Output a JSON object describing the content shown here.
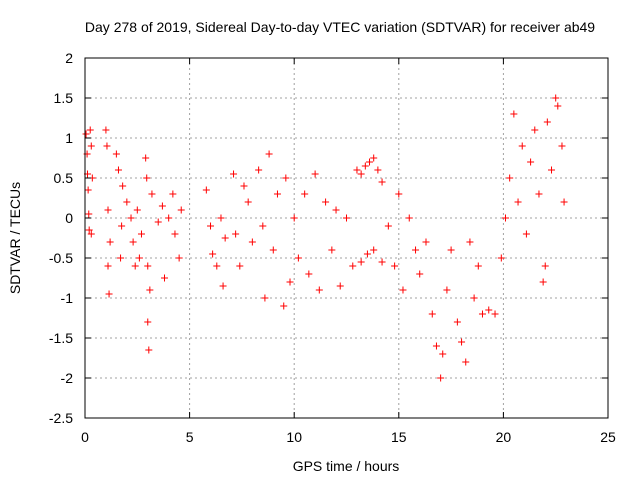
{
  "chart_data": {
    "type": "scatter",
    "title": "Day 278 of 2019, Sidereal Day-to-day VTEC variation (SDTVAR) for receiver ab49",
    "xlabel": "GPS time / hours",
    "ylabel": "SDTVAR / TECUs",
    "xlim": [
      0,
      25
    ],
    "ylim": [
      -2.5,
      2
    ],
    "xticks": [
      0,
      5,
      10,
      15,
      20,
      25
    ],
    "yticks": [
      -2.5,
      -2,
      -1.5,
      -1,
      -0.5,
      0,
      0.5,
      1,
      1.5,
      2
    ],
    "grid": true,
    "marker": "+",
    "series": [
      {
        "name": "SDTVAR",
        "color": "#ff0000",
        "points": [
          [
            0.05,
            1.05
          ],
          [
            0.1,
            0.8
          ],
          [
            0.12,
            0.55
          ],
          [
            0.15,
            0.35
          ],
          [
            0.18,
            0.05
          ],
          [
            0.2,
            -0.15
          ],
          [
            0.25,
            1.1
          ],
          [
            0.3,
            0.9
          ],
          [
            0.3,
            -0.2
          ],
          [
            0.35,
            0.5
          ],
          [
            1.0,
            1.1
          ],
          [
            1.05,
            0.9
          ],
          [
            1.1,
            0.1
          ],
          [
            1.1,
            -0.6
          ],
          [
            1.15,
            -0.95
          ],
          [
            1.2,
            -0.3
          ],
          [
            1.5,
            0.8
          ],
          [
            1.6,
            0.6
          ],
          [
            1.7,
            -0.5
          ],
          [
            1.75,
            -0.1
          ],
          [
            1.8,
            0.4
          ],
          [
            2.0,
            0.2
          ],
          [
            2.2,
            0.0
          ],
          [
            2.3,
            -0.3
          ],
          [
            2.4,
            -0.6
          ],
          [
            2.5,
            0.1
          ],
          [
            2.6,
            -0.5
          ],
          [
            2.7,
            -0.2
          ],
          [
            2.9,
            0.75
          ],
          [
            2.95,
            0.5
          ],
          [
            3.0,
            -0.6
          ],
          [
            3.0,
            -1.3
          ],
          [
            3.05,
            -1.65
          ],
          [
            3.1,
            -0.9
          ],
          [
            3.2,
            0.3
          ],
          [
            3.5,
            -0.05
          ],
          [
            3.7,
            0.15
          ],
          [
            3.8,
            -0.75
          ],
          [
            4.0,
            0.0
          ],
          [
            4.2,
            0.3
          ],
          [
            4.3,
            -0.2
          ],
          [
            4.5,
            -0.5
          ],
          [
            4.6,
            0.1
          ],
          [
            5.8,
            0.35
          ],
          [
            6.0,
            -0.1
          ],
          [
            6.1,
            -0.45
          ],
          [
            6.3,
            -0.6
          ],
          [
            6.5,
            0.0
          ],
          [
            6.6,
            -0.85
          ],
          [
            6.7,
            -0.25
          ],
          [
            7.1,
            0.55
          ],
          [
            7.2,
            -0.2
          ],
          [
            7.4,
            -0.6
          ],
          [
            7.6,
            0.4
          ],
          [
            7.8,
            0.2
          ],
          [
            8.0,
            -0.3
          ],
          [
            8.3,
            0.6
          ],
          [
            8.5,
            -0.1
          ],
          [
            8.6,
            -1.0
          ],
          [
            8.8,
            0.8
          ],
          [
            9.0,
            -0.4
          ],
          [
            9.2,
            0.3
          ],
          [
            9.5,
            -1.1
          ],
          [
            9.6,
            0.5
          ],
          [
            9.8,
            -0.8
          ],
          [
            10.0,
            0.0
          ],
          [
            10.2,
            -0.5
          ],
          [
            10.5,
            0.3
          ],
          [
            10.7,
            -0.7
          ],
          [
            11.0,
            0.55
          ],
          [
            11.2,
            -0.9
          ],
          [
            11.5,
            0.2
          ],
          [
            11.8,
            -0.4
          ],
          [
            12.0,
            0.1
          ],
          [
            12.2,
            -0.85
          ],
          [
            12.5,
            0.0
          ],
          [
            12.8,
            -0.6
          ],
          [
            13.0,
            0.6
          ],
          [
            13.2,
            0.55
          ],
          [
            13.4,
            0.65
          ],
          [
            13.6,
            0.7
          ],
          [
            13.8,
            0.75
          ],
          [
            14.0,
            0.6
          ],
          [
            14.2,
            0.45
          ],
          [
            13.2,
            -0.55
          ],
          [
            13.5,
            -0.45
          ],
          [
            13.8,
            -0.4
          ],
          [
            14.2,
            -0.55
          ],
          [
            14.5,
            -0.1
          ],
          [
            14.8,
            -0.6
          ],
          [
            15.0,
            0.3
          ],
          [
            15.2,
            -0.9
          ],
          [
            15.5,
            0.0
          ],
          [
            15.8,
            -0.4
          ],
          [
            16.0,
            -0.7
          ],
          [
            16.3,
            -0.3
          ],
          [
            16.6,
            -1.2
          ],
          [
            16.8,
            -1.6
          ],
          [
            17.0,
            -2.0
          ],
          [
            17.1,
            -1.7
          ],
          [
            17.3,
            -0.9
          ],
          [
            17.5,
            -0.4
          ],
          [
            17.8,
            -1.3
          ],
          [
            18.0,
            -1.55
          ],
          [
            18.2,
            -1.8
          ],
          [
            18.4,
            -0.3
          ],
          [
            18.6,
            -1.0
          ],
          [
            18.8,
            -0.6
          ],
          [
            19.0,
            -1.2
          ],
          [
            19.3,
            -1.15
          ],
          [
            19.6,
            -1.2
          ],
          [
            19.9,
            -0.5
          ],
          [
            20.1,
            0.0
          ],
          [
            20.3,
            0.5
          ],
          [
            20.5,
            1.3
          ],
          [
            20.7,
            0.2
          ],
          [
            20.9,
            0.9
          ],
          [
            21.1,
            -0.2
          ],
          [
            21.3,
            0.7
          ],
          [
            21.5,
            1.1
          ],
          [
            21.7,
            0.3
          ],
          [
            21.9,
            -0.8
          ],
          [
            22.0,
            -0.6
          ],
          [
            22.1,
            1.2
          ],
          [
            22.3,
            0.6
          ],
          [
            22.5,
            1.5
          ],
          [
            22.6,
            1.4
          ],
          [
            22.8,
            0.9
          ],
          [
            22.9,
            0.2
          ]
        ]
      }
    ]
  }
}
